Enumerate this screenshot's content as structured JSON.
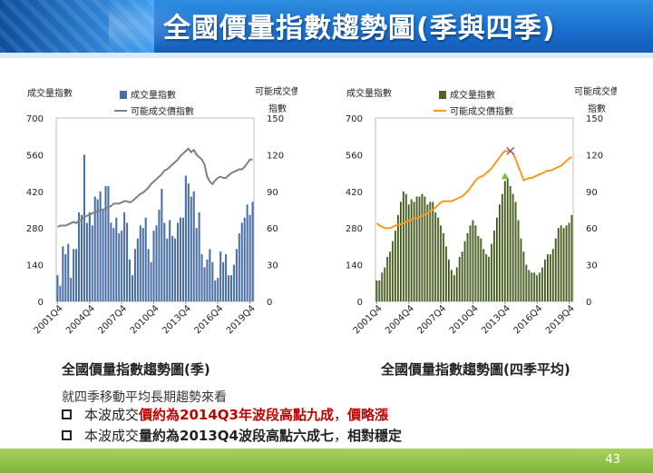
{
  "header": {
    "title": "全國價量指數趨勢圖(季與四季)"
  },
  "captions": {
    "left": "全國價量指數趨勢圖(季)",
    "right": "全國價量指數趨勢圖(四季平均)"
  },
  "note": "就四季移動平均長期趨勢來看",
  "bullets": [
    {
      "parts": [
        {
          "text": "本波成交",
          "style": "normal"
        },
        {
          "text": "價約為2014Q3年波段高點九成",
          "style": "red"
        },
        {
          "text": "，",
          "style": "normal"
        },
        {
          "text": "價略漲",
          "style": "red"
        }
      ]
    },
    {
      "parts": [
        {
          "text": "本波成交",
          "style": "normal"
        },
        {
          "text": "量約為2013Q4波段高點六成七",
          "style": "bold"
        },
        {
          "text": "，",
          "style": "normal"
        },
        {
          "text": "相對穩定",
          "style": "bold"
        }
      ]
    }
  ],
  "footer": {
    "page_number": "43"
  },
  "colors": {
    "bar_left": "#4a6fa5",
    "line_left": "#808080",
    "bar_right": "#4f6228",
    "line_right": "#f79a1e",
    "marker_peak": "#7ab648",
    "marker_price": "#8a5a8a"
  },
  "chart_data": [
    {
      "type": "bar",
      "left_axis_title": "成交量指數",
      "right_axis_title_lines": [
        "可能成交價",
        "指數"
      ],
      "legend": [
        {
          "label": "成交量指數",
          "kind": "bar"
        },
        {
          "label": "可能成交價指數",
          "kind": "line"
        }
      ],
      "legend_placement": "top-center",
      "ylim_left": [
        0,
        700
      ],
      "yticks_left": [
        "0",
        "140",
        "280",
        "420",
        "560",
        "700"
      ],
      "ylim_right": [
        0,
        150
      ],
      "yticks_right": [
        "0",
        "30",
        "60",
        "90",
        "120",
        "150"
      ],
      "x_tick_labels": [
        "2001Q4",
        "2004Q4",
        "2007Q4",
        "2010Q4",
        "2013Q4",
        "2016Q4",
        "2019Q4"
      ],
      "x_tick_indices": [
        0,
        12,
        24,
        36,
        48,
        60,
        72
      ],
      "series": [
        {
          "name": "成交量指數",
          "axis": "left",
          "values": [
            100,
            60,
            210,
            180,
            220,
            90,
            200,
            200,
            340,
            330,
            560,
            300,
            340,
            290,
            400,
            390,
            420,
            350,
            440,
            440,
            300,
            280,
            320,
            260,
            270,
            340,
            300,
            160,
            100,
            200,
            240,
            290,
            280,
            320,
            200,
            150,
            270,
            290,
            350,
            430,
            300,
            240,
            310,
            250,
            240,
            300,
            320,
            320,
            480,
            450,
            400,
            420,
            280,
            340,
            180,
            130,
            160,
            200,
            150,
            80,
            90,
            190,
            150,
            180,
            100,
            100,
            140,
            200,
            260,
            300,
            320,
            370,
            330,
            380
          ]
        },
        {
          "name": "可能成交價指數",
          "axis": "right",
          "values": [
            61,
            62,
            62,
            62,
            63,
            64,
            65,
            64,
            66,
            67,
            69,
            70,
            71,
            72,
            73,
            74,
            75,
            75,
            76,
            77,
            78,
            80,
            80,
            80,
            81,
            82,
            82,
            81,
            82,
            84,
            86,
            88,
            89,
            91,
            93,
            96,
            98,
            100,
            102,
            104,
            107,
            108,
            110,
            112,
            114,
            116,
            119,
            121,
            123,
            125,
            122,
            124,
            120,
            118,
            116,
            112,
            102,
            98,
            96,
            99,
            101,
            102,
            101,
            101,
            103,
            105,
            106,
            107,
            108,
            108,
            110,
            113,
            116,
            116
          ]
        }
      ]
    },
    {
      "type": "bar",
      "left_axis_title": "成交量指數",
      "right_axis_title_lines": [
        "可能成交價",
        "指數"
      ],
      "legend": [
        {
          "label": "成交量指數",
          "kind": "bar"
        },
        {
          "label": "可能成交價指數",
          "kind": "line"
        }
      ],
      "legend_placement": "top-center",
      "ylim_left": [
        0,
        700
      ],
      "yticks_left": [
        "0",
        "140",
        "280",
        "420",
        "560",
        "700"
      ],
      "ylim_right": [
        0,
        150
      ],
      "yticks_right": [
        "0",
        "30",
        "60",
        "90",
        "120",
        "150"
      ],
      "x_tick_labels": [
        "2001Q4",
        "2004Q4",
        "2007Q4",
        "2010Q4",
        "2013Q4",
        "2016Q4",
        "2019Q4"
      ],
      "x_tick_indices": [
        0,
        12,
        24,
        36,
        48,
        60,
        72
      ],
      "series": [
        {
          "name": "成交量指數",
          "axis": "left",
          "values": [
            80,
            80,
            110,
            130,
            170,
            190,
            230,
            270,
            330,
            380,
            420,
            410,
            370,
            390,
            380,
            400,
            400,
            410,
            400,
            370,
            380,
            380,
            340,
            320,
            290,
            260,
            210,
            160,
            120,
            100,
            130,
            170,
            190,
            230,
            260,
            290,
            310,
            290,
            250,
            240,
            200,
            180,
            170,
            220,
            270,
            320,
            370,
            410,
            460,
            470,
            440,
            410,
            380,
            310,
            240,
            190,
            140,
            120,
            110,
            110,
            100,
            110,
            130,
            160,
            180,
            180,
            200,
            240,
            280,
            290,
            280,
            290,
            300,
            330
          ]
        },
        {
          "name": "可能成交價指數",
          "axis": "right",
          "values": [
            64,
            62,
            61,
            60,
            60,
            60,
            61,
            62,
            63,
            63,
            64,
            65,
            66,
            67,
            68,
            68,
            69,
            70,
            71,
            72,
            74,
            75,
            77,
            79,
            81,
            82,
            82,
            82,
            82,
            83,
            84,
            85,
            86,
            88,
            90,
            93,
            96,
            99,
            101,
            102,
            103,
            105,
            107,
            109,
            112,
            115,
            118,
            121,
            123,
            123,
            123,
            121,
            116,
            110,
            105,
            99,
            100,
            101,
            101,
            102,
            103,
            104,
            105,
            106,
            107,
            107,
            108,
            109,
            110,
            111,
            113,
            115,
            117,
            118
          ]
        }
      ],
      "annotations": [
        {
          "kind": "triangle-marker",
          "series": 0,
          "index": 48
        },
        {
          "kind": "x-marker",
          "series": 1,
          "index": 50
        }
      ]
    }
  ]
}
